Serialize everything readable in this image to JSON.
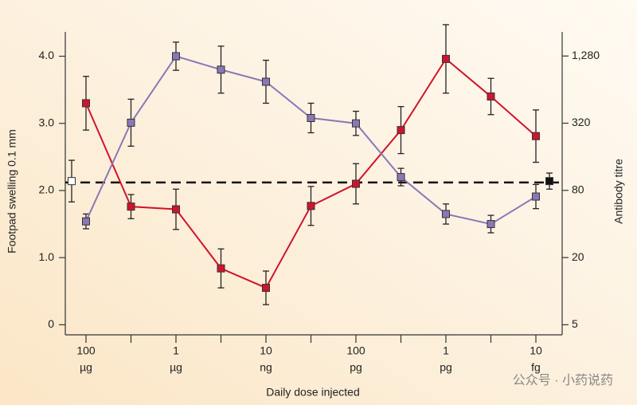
{
  "chart_data": {
    "type": "line",
    "ylabel": "Footpad swelling 0.1 mm",
    "y2label": "Antibody titre",
    "xlabel": "Daily dose injected",
    "categories": [
      "100",
      null,
      "1",
      null,
      "10",
      null,
      "100",
      null,
      "1",
      null,
      "10"
    ],
    "category_units": [
      "µg",
      null,
      "µg",
      null,
      "ng",
      null,
      "pg",
      null,
      "pg",
      null,
      "fg"
    ],
    "ylim": [
      -0.15,
      4.6
    ],
    "yticks": [
      0,
      {
        "value": 1,
        "label": "1.0"
      },
      {
        "value": 2,
        "label": "2.0"
      },
      {
        "value": 3,
        "label": "3.0"
      },
      {
        "value": 4,
        "label": "4.0"
      }
    ],
    "y2lim": [
      4.06,
      2925
    ],
    "y2_log": true,
    "y2ticks": [
      5,
      20,
      80,
      320,
      {
        "value": 1280,
        "label": "1,280"
      }
    ],
    "series": [
      {
        "color": "#d0142c",
        "values": [
          3.3,
          1.76,
          1.72,
          0.84,
          0.55,
          1.77,
          2.1,
          2.9,
          3.96,
          3.4,
          2.81
        ],
        "errors": [
          0.4,
          0.18,
          0.3,
          0.29,
          0.25,
          0.29,
          0.3,
          0.35,
          0.51,
          0.27,
          0.39
        ]
      },
      {
        "color": "#8a78b6",
        "values": [
          1.54,
          3.01,
          4.0,
          3.8,
          3.62,
          3.08,
          3.0,
          2.2,
          1.65,
          1.5,
          1.91
        ],
        "errors": [
          0.11,
          0.35,
          0.21,
          0.35,
          0.32,
          0.22,
          0.18,
          0.13,
          0.15,
          0.13,
          0.18
        ]
      }
    ],
    "controls": [
      {
        "value": 2.14,
        "error": 0.31,
        "color": "#ffffff"
      },
      {
        "value": 2.14,
        "error": 0.12,
        "color": "#111111"
      }
    ],
    "reference_line": 2.12,
    "watermark": "公众号 · 小药说药"
  }
}
